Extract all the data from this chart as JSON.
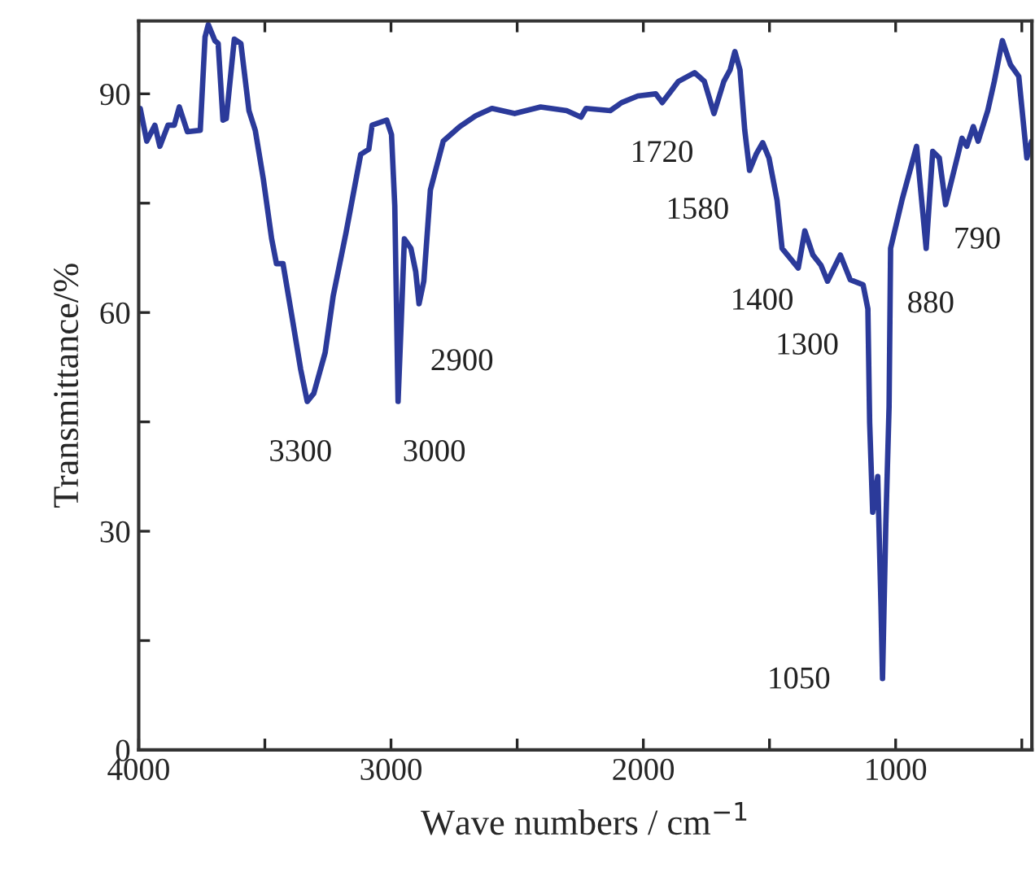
{
  "chart_data": {
    "type": "line",
    "xlabel": "Wave numbers / cm$^{−1}$",
    "ylabel": "Transmittance/%",
    "xlim": [
      4000,
      460
    ],
    "ylim": [
      0,
      100
    ],
    "xticks": [
      4000,
      {
        "value": 3500,
        "label": null
      },
      3000,
      {
        "value": 2500,
        "label": null
      },
      2000,
      {
        "value": 1500,
        "label": null
      },
      1000,
      {
        "value": 500,
        "label": null
      }
    ],
    "yticks": [
      0,
      {
        "value": 15,
        "label": null
      },
      30,
      {
        "value": 45,
        "label": null
      },
      60,
      {
        "value": 75,
        "label": null
      },
      90
    ],
    "grid": false,
    "legend": false,
    "marker": "none",
    "line_style": "solid",
    "series": [
      {
        "color": "#2b3a9a",
        "x": [
          3994,
          3968,
          3936,
          3916,
          3884,
          3859,
          3839,
          3807,
          3756,
          3737,
          3724,
          3698,
          3685,
          3666,
          3653,
          3621,
          3595,
          3563,
          3538,
          3506,
          3473,
          3454,
          3428,
          3390,
          3358,
          3332,
          3306,
          3261,
          3229,
          3178,
          3120,
          3088,
          3075,
          3017,
          2998,
          2985,
          2972,
          2960,
          2947,
          2921,
          2902,
          2889,
          2870,
          2844,
          2793,
          2728,
          2664,
          2600,
          2510,
          2407,
          2304,
          2247,
          2227,
          2131,
          2086,
          2022,
          1951,
          1925,
          1861,
          1797,
          1758,
          1720,
          1681,
          1656,
          1637,
          1617,
          1598,
          1579,
          1553,
          1527,
          1502,
          1470,
          1450,
          1386,
          1360,
          1328,
          1296,
          1270,
          1219,
          1180,
          1129,
          1110,
          1103,
          1091,
          1071,
          1058,
          1052,
          1039,
          1026,
          1020,
          975,
          917,
          879,
          853,
          827,
          802,
          737,
          718,
          692,
          673,
          635,
          609,
          577,
          545,
          512,
          480,
          461
        ],
        "values": [
          88,
          83.5,
          85.7,
          82.8,
          85.7,
          85.7,
          88.2,
          84.8,
          85,
          97.8,
          99.5,
          97.3,
          96.9,
          86.4,
          86.6,
          97.5,
          96.9,
          87.7,
          85,
          78.3,
          70.1,
          66.7,
          66.7,
          58.9,
          52.2,
          47.8,
          48.9,
          54.5,
          62.3,
          71,
          81.7,
          82.4,
          85.7,
          86.4,
          84.4,
          74.6,
          47.8,
          58.3,
          70.1,
          68.8,
          65.6,
          61.2,
          64.3,
          76.8,
          83.5,
          85.5,
          87,
          88,
          87.3,
          88.2,
          87.7,
          86.8,
          88,
          87.7,
          88.8,
          89.7,
          90,
          88.8,
          91.7,
          92.9,
          91.7,
          87.3,
          91.7,
          93.3,
          95.8,
          93.3,
          85,
          79.5,
          81.7,
          83.3,
          81.2,
          75.4,
          68.8,
          66.1,
          71.2,
          67.9,
          66.5,
          64.3,
          67.9,
          64.5,
          63.8,
          60.5,
          44.9,
          32.6,
          37.5,
          19.6,
          9.8,
          30.8,
          47.1,
          68.8,
          75.4,
          82.8,
          68.8,
          82.1,
          81.2,
          74.8,
          83.9,
          82.8,
          85.5,
          83.5,
          87.7,
          91.7,
          97.3,
          94,
          92.4,
          81.2,
          83.5
        ]
      }
    ],
    "annotations": [
      {
        "text": "3300",
        "x": 3332,
        "y": 47.8
      },
      {
        "text": "3000",
        "x": 2972,
        "y": 47.8
      },
      {
        "text": "2900",
        "x": 2889,
        "y": 61.2
      },
      {
        "text": "1720",
        "x": 1720,
        "y": 87.3
      },
      {
        "text": "1580",
        "x": 1579,
        "y": 79.5
      },
      {
        "text": "1400",
        "x": 1386,
        "y": 66.1
      },
      {
        "text": "1300",
        "x": 1270,
        "y": 64.3
      },
      {
        "text": "1050",
        "x": 1052,
        "y": 9.8
      },
      {
        "text": "880",
        "x": 879,
        "y": 68.8
      },
      {
        "text": "790",
        "x": 802,
        "y": 74.8
      }
    ]
  }
}
